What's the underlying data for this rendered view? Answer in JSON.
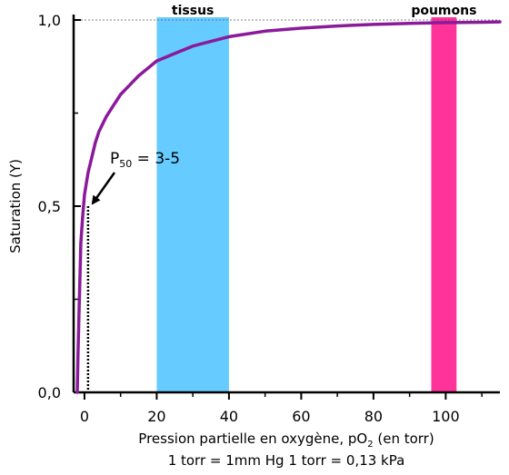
{
  "chart_data": {
    "type": "line",
    "xlabel": "Pression partielle en oxygène, pO",
    "xlabel_sub": "2",
    "xlabel_suffix": " (en torr)",
    "ylabel": "Saturation (Y)",
    "note": "1 torr = 1mm Hg 1 torr = 0,13 kPa",
    "xlim": [
      -3,
      115
    ],
    "ylim": [
      0,
      1.0
    ],
    "x_ticks": [
      0,
      20,
      40,
      60,
      80,
      100
    ],
    "x_tick_labels": [
      "0",
      "20",
      "40",
      "60",
      "80",
      "100"
    ],
    "y_ticks": [
      0,
      0.5,
      1.0
    ],
    "y_tick_labels": [
      "0,0",
      "0,5",
      "1,0"
    ],
    "grid": false,
    "series": [
      {
        "color": "#8B1A9B",
        "x": [
          -2,
          -1.8,
          -1.5,
          -1.2,
          -1,
          -0.5,
          0,
          0.5,
          1,
          2,
          3,
          4,
          5,
          6,
          8,
          10,
          12,
          15,
          20,
          25,
          30,
          40,
          50,
          60,
          70,
          80,
          90,
          100,
          110,
          115
        ],
        "y": [
          0.0,
          0.1,
          0.22,
          0.33,
          0.4,
          0.47,
          0.53,
          0.56,
          0.59,
          0.63,
          0.67,
          0.7,
          0.72,
          0.74,
          0.77,
          0.8,
          0.82,
          0.85,
          0.89,
          0.91,
          0.93,
          0.955,
          0.97,
          0.978,
          0.984,
          0.988,
          0.991,
          0.993,
          0.994,
          0.995
        ]
      }
    ],
    "bands": [
      {
        "label": "tissus",
        "x0": 20,
        "x1": 40,
        "color": "#66CCFF"
      },
      {
        "label": "poumons",
        "x0": 96,
        "x1": 103,
        "color": "#FF3399"
      }
    ],
    "annotation": {
      "text_main": "P",
      "text_sub": "50",
      "text_value": " = 3-5",
      "x": 1,
      "y": 0.5
    },
    "reference_line_y": 1.0,
    "dotted_drop_x": 1
  }
}
